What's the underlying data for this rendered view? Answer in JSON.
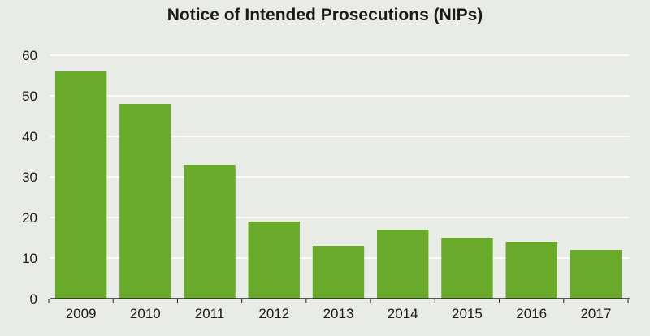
{
  "chart_data": {
    "type": "bar",
    "title": "Notice of Intended Prosecutions (NIPs)",
    "xlabel": "",
    "ylabel": "",
    "categories": [
      "2009",
      "2010",
      "2011",
      "2012",
      "2013",
      "2014",
      "2015",
      "2016",
      "2017"
    ],
    "values": [
      56,
      48,
      33,
      19,
      13,
      17,
      15,
      14,
      12
    ],
    "ylim": [
      0,
      60
    ],
    "yticks": [
      0,
      10,
      20,
      30,
      40,
      50,
      60
    ],
    "grid": true,
    "legend": "none",
    "colors": {
      "bar": "#6aaa2a",
      "background": "#e9ebe6",
      "grid": "#ffffff",
      "text": "#1a1a1a"
    }
  }
}
